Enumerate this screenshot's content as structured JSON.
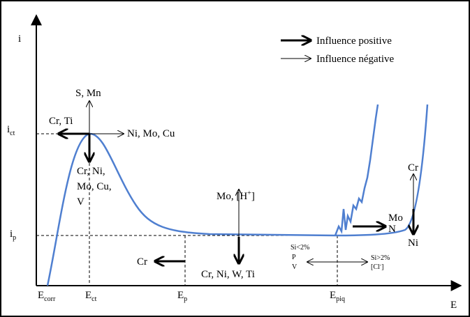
{
  "axes": {
    "y": "i",
    "x": "E"
  },
  "legend": {
    "positive": "Influence positive",
    "negative": "Influence négative"
  },
  "y_labels": {
    "ict": {
      "main": "i",
      "sub": "ct"
    },
    "ip": {
      "main": "i",
      "sub": "p"
    }
  },
  "x_labels": {
    "ecorr": {
      "main": "E",
      "sub": "corr"
    },
    "ect": {
      "main": "E",
      "sub": "ct"
    },
    "ep": {
      "main": "E",
      "sub": "p"
    },
    "epiq": {
      "main": "E",
      "sub": "piq"
    }
  },
  "annotations": {
    "s_mn": "S, Mn",
    "cr_ti": "Cr, Ti",
    "ni_mo_cu": "Ni, Mo, Cu",
    "cr_ni_mo_cu_v": [
      "Cr, Ni,",
      "Mo, Cu,",
      "V"
    ],
    "mo_h": {
      "main": "Mo, [H",
      "sup": "+",
      "end": "]"
    },
    "cr_left": "Cr",
    "cr_ni_w_ti": "Cr, Ni, W, Ti",
    "si_low": [
      "Si<2%",
      "P",
      "V"
    ],
    "si_high": "Si>2%",
    "cl": {
      "main": "[Cl",
      "sup": "-",
      "end": "]"
    },
    "mo_n": [
      "Mo",
      "N"
    ],
    "cr_top": "Cr",
    "ni_bottom": "Ni"
  }
}
